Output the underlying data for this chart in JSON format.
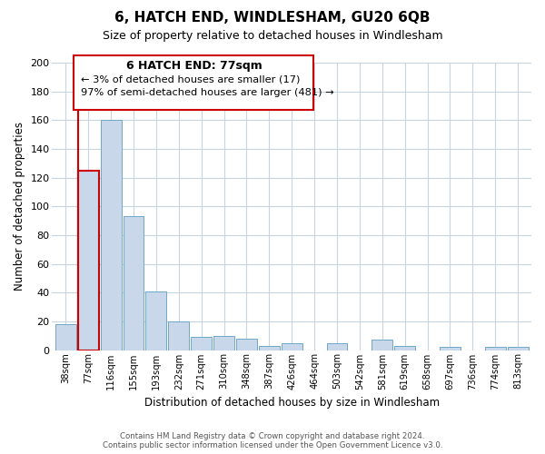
{
  "title": "6, HATCH END, WINDLESHAM, GU20 6QB",
  "subtitle": "Size of property relative to detached houses in Windlesham",
  "xlabel": "Distribution of detached houses by size in Windlesham",
  "ylabel": "Number of detached properties",
  "categories": [
    "38sqm",
    "77sqm",
    "116sqm",
    "155sqm",
    "193sqm",
    "232sqm",
    "271sqm",
    "310sqm",
    "348sqm",
    "387sqm",
    "426sqm",
    "464sqm",
    "503sqm",
    "542sqm",
    "581sqm",
    "619sqm",
    "658sqm",
    "697sqm",
    "736sqm",
    "774sqm",
    "813sqm"
  ],
  "values": [
    18,
    125,
    160,
    93,
    41,
    20,
    9,
    10,
    8,
    3,
    5,
    0,
    5,
    0,
    7,
    3,
    0,
    2,
    0,
    2,
    2
  ],
  "bar_color": "#c8d8ea",
  "bar_edge_color": "#6ea8c8",
  "highlight_bar_index": 1,
  "highlight_bar_edge_color": "#cc0000",
  "ylim": [
    0,
    200
  ],
  "yticks": [
    0,
    20,
    40,
    60,
    80,
    100,
    120,
    140,
    160,
    180,
    200
  ],
  "annotation_title": "6 HATCH END: 77sqm",
  "annotation_line1": "← 3% of detached houses are smaller (17)",
  "annotation_line2": "97% of semi-detached houses are larger (481) →",
  "annotation_box_edge": "#cc0000",
  "footer_line1": "Contains HM Land Registry data © Crown copyright and database right 2024.",
  "footer_line2": "Contains public sector information licensed under the Open Government Licence v3.0.",
  "background_color": "#ffffff",
  "grid_color": "#c8d4e0"
}
